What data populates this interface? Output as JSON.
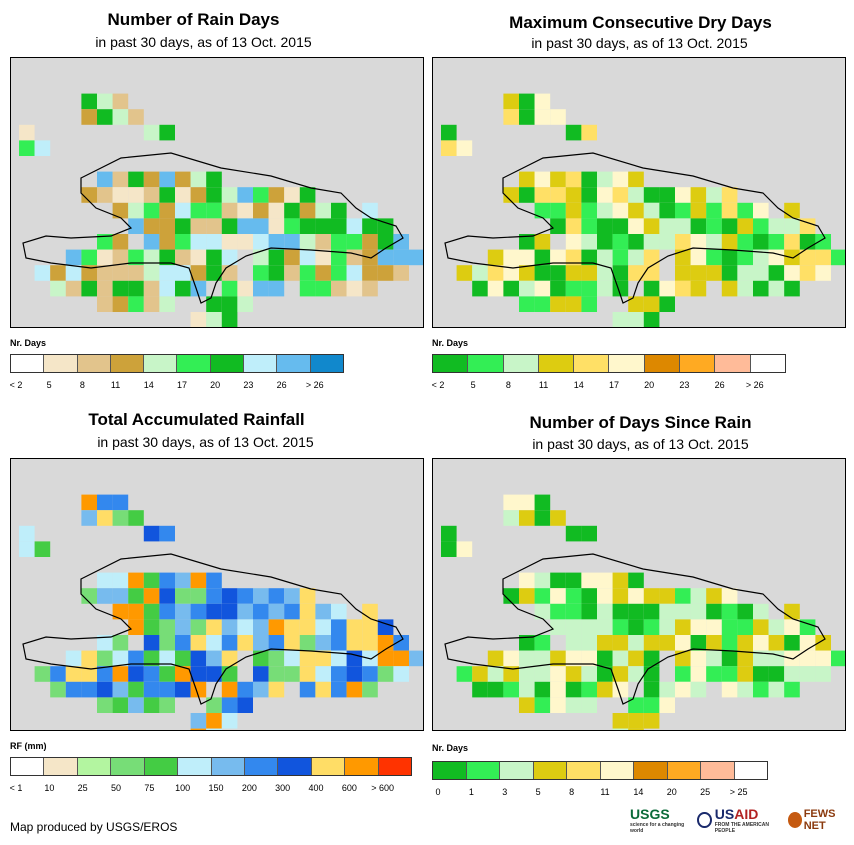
{
  "panels": [
    {
      "id": "rain-days",
      "title": "Number of Rain Days",
      "subtitle": "in past 30 days, as of 13 Oct. 2015",
      "legend_title": "Nr. Days",
      "legend_colors": [
        "#ffffff",
        "#f5e6c8",
        "#e2c48c",
        "#cda23a",
        "#c8f5c8",
        "#33ee55",
        "#11bb22",
        "#bfeefa",
        "#66bbee",
        "#1188cc"
      ],
      "legend_ticks": [
        "< 2",
        "5",
        "8",
        "11",
        "14",
        "17",
        "20",
        "23",
        "26",
        "> 26"
      ],
      "grid_colors": [
        "#e2c48c",
        "#cda23a",
        "#33ee55",
        "#11bb22",
        "#c8f5c8",
        "#66bbee",
        "#bfeefa",
        "#f5e6c8"
      ]
    },
    {
      "id": "dry-days",
      "title": "Maximum Consecutive Dry Days",
      "subtitle": "in past 30 days, as of 13 Oct. 2015",
      "legend_title": "Nr. Days",
      "legend_colors": [
        "#11bb22",
        "#33ee55",
        "#c8f5c8",
        "#ddcc11",
        "#ffe066",
        "#fff7cc",
        "#dd8800",
        "#ffaa22",
        "#ffbb99",
        "#ffffff"
      ],
      "legend_ticks": [
        "< 2",
        "5",
        "8",
        "11",
        "14",
        "17",
        "20",
        "23",
        "26",
        "> 26"
      ],
      "grid_colors": [
        "#c8f5c8",
        "#33ee55",
        "#11bb22",
        "#ddcc11",
        "#ffe066",
        "#fff7cc"
      ]
    },
    {
      "id": "rainfall",
      "title": "Total Accumulated Rainfall",
      "subtitle": "in past 30 days, as of 13 Oct. 2015",
      "legend_title": "RF (mm)",
      "legend_colors": [
        "#ffffff",
        "#f5e6c8",
        "#b3f5a0",
        "#77dd77",
        "#44cc44",
        "#bfeefa",
        "#77bbee",
        "#3388ee",
        "#1155dd",
        "#ffdd66",
        "#ff9900",
        "#ff3300"
      ],
      "legend_ticks": [
        "< 1",
        "10",
        "25",
        "50",
        "75",
        "100",
        "150",
        "200",
        "300",
        "400",
        "600",
        "> 600"
      ],
      "grid_colors": [
        "#3388ee",
        "#1155dd",
        "#77bbee",
        "#ffdd66",
        "#ff9900",
        "#77dd77",
        "#bfeefa",
        "#44cc44"
      ]
    },
    {
      "id": "since-rain",
      "title": "Number of Days Since Rain",
      "subtitle": "in past 30 days, as of 13 Oct. 2015",
      "legend_title": "Nr. Days",
      "legend_colors": [
        "#11bb22",
        "#33ee55",
        "#c8f5c8",
        "#ddcc11",
        "#ffe066",
        "#fff7cc",
        "#dd8800",
        "#ffaa22",
        "#ffbb99",
        "#ffffff"
      ],
      "legend_ticks": [
        "0",
        "1",
        "3",
        "5",
        "8",
        "11",
        "14",
        "20",
        "25",
        "> 25"
      ],
      "grid_colors": [
        "#c8f5c8",
        "#11bb22",
        "#33ee55",
        "#ddcc11",
        "#fff7cc"
      ]
    }
  ],
  "credit": "Map produced by USGS/EROS",
  "logos": {
    "usgs": "USGS",
    "usgs_tagline": "science for a changing world",
    "usaid_prefix": "US",
    "usaid_suffix": "AID",
    "usaid_tagline": "FROM THE AMERICAN PEOPLE",
    "fews": "FEWS NET"
  }
}
